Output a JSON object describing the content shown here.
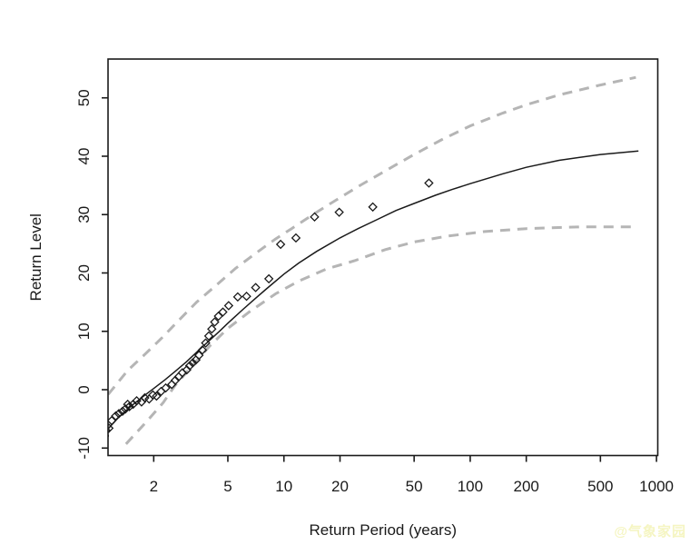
{
  "watermark": {
    "text": "@气象家园",
    "color": "#f5f5c2"
  },
  "chart_data": {
    "type": "scatter",
    "title": "",
    "xlabel": "Return Period (years)",
    "ylabel": "Return Level",
    "x_scale": "log10",
    "grid": "off",
    "legend": "none",
    "xlim": [
      1.137,
      1016
    ],
    "ylim": [
      -11.28,
      56.65
    ],
    "x_ticks": [
      2,
      5,
      10,
      20,
      50,
      100,
      200,
      500,
      1000
    ],
    "x_tick_labels": [
      "2",
      "5",
      "10",
      "20",
      "50",
      "100",
      "200",
      "500",
      "1000"
    ],
    "y_ticks": [
      -10,
      0,
      10,
      20,
      30,
      40,
      50
    ],
    "y_tick_labels": [
      "-10",
      "0",
      "10",
      "20",
      "30",
      "40",
      "50"
    ],
    "colors": {
      "line": "#1a1a1a",
      "points": "#1a1a1a",
      "confidence": "#b5b5b5"
    },
    "series": [
      {
        "name": "empirical-return-levels",
        "kind": "scatter",
        "marker": "open-diamond",
        "points": [
          [
            1.11,
            -7.0
          ],
          [
            1.15,
            -6.6
          ],
          [
            1.19,
            -5.3
          ],
          [
            1.25,
            -4.5
          ],
          [
            1.3,
            -4.1
          ],
          [
            1.36,
            -3.7
          ],
          [
            1.41,
            -3.3
          ],
          [
            1.45,
            -2.5
          ],
          [
            1.48,
            -2.9
          ],
          [
            1.55,
            -2.5
          ],
          [
            1.62,
            -1.9
          ],
          [
            1.72,
            -2.1
          ],
          [
            1.79,
            -1.4
          ],
          [
            1.89,
            -1.6
          ],
          [
            1.98,
            -0.9
          ],
          [
            2.07,
            -1.1
          ],
          [
            2.19,
            -0.3
          ],
          [
            2.32,
            0.3
          ],
          [
            2.5,
            0.9
          ],
          [
            2.61,
            1.6
          ],
          [
            2.72,
            2.2
          ],
          [
            2.85,
            2.9
          ],
          [
            3.01,
            3.4
          ],
          [
            3.12,
            4.1
          ],
          [
            3.24,
            4.6
          ],
          [
            3.37,
            5.1
          ],
          [
            3.5,
            5.9
          ],
          [
            3.65,
            6.8
          ],
          [
            3.8,
            8.0
          ],
          [
            3.95,
            9.2
          ],
          [
            4.1,
            10.4
          ],
          [
            4.25,
            11.6
          ],
          [
            4.45,
            12.6
          ],
          [
            4.7,
            13.3
          ],
          [
            5.05,
            14.4
          ],
          [
            5.65,
            15.9
          ],
          [
            6.3,
            16.0
          ],
          [
            7.05,
            17.5
          ],
          [
            8.3,
            19.0
          ],
          [
            9.6,
            24.9
          ],
          [
            11.6,
            26.0
          ],
          [
            14.6,
            29.6
          ],
          [
            19.8,
            30.4
          ],
          [
            30.0,
            31.3
          ],
          [
            60.0,
            35.4
          ]
        ]
      },
      {
        "name": "fitted-return-level",
        "kind": "line",
        "style": "solid",
        "points": [
          [
            1.1,
            -7.2
          ],
          [
            1.3,
            -4.7
          ],
          [
            1.5,
            -2.9
          ],
          [
            1.75,
            -1.2
          ],
          [
            2.0,
            0.2
          ],
          [
            2.3,
            1.7
          ],
          [
            2.6,
            3.1
          ],
          [
            3.0,
            4.8
          ],
          [
            3.5,
            6.8
          ],
          [
            4.0,
            8.5
          ],
          [
            4.5,
            10.0
          ],
          [
            5.0,
            11.4
          ],
          [
            6.0,
            13.7
          ],
          [
            7.0,
            15.6
          ],
          [
            8.0,
            17.2
          ],
          [
            10,
            19.8
          ],
          [
            12,
            21.7
          ],
          [
            15,
            23.7
          ],
          [
            20,
            26.0
          ],
          [
            25,
            27.6
          ],
          [
            30,
            28.8
          ],
          [
            40,
            30.7
          ],
          [
            50,
            31.9
          ],
          [
            65,
            33.3
          ],
          [
            80,
            34.3
          ],
          [
            100,
            35.3
          ],
          [
            150,
            37.0
          ],
          [
            200,
            38.1
          ],
          [
            300,
            39.3
          ],
          [
            500,
            40.3
          ],
          [
            800,
            40.9
          ]
        ]
      },
      {
        "name": "upper-confidence-bound",
        "kind": "line",
        "style": "dashed",
        "points": [
          [
            1.14,
            -0.8
          ],
          [
            1.45,
            3.3
          ],
          [
            1.8,
            6.1
          ],
          [
            2.2,
            8.8
          ],
          [
            2.75,
            12.0
          ],
          [
            3.4,
            15.0
          ],
          [
            4.3,
            17.8
          ],
          [
            5.5,
            20.8
          ],
          [
            7.0,
            23.3
          ],
          [
            9.0,
            25.8
          ],
          [
            11,
            27.6
          ],
          [
            14,
            29.8
          ],
          [
            18,
            32.0
          ],
          [
            25,
            34.8
          ],
          [
            35,
            37.5
          ],
          [
            50,
            40.3
          ],
          [
            70,
            42.8
          ],
          [
            100,
            45.2
          ],
          [
            150,
            47.4
          ],
          [
            200,
            48.8
          ],
          [
            300,
            50.5
          ],
          [
            500,
            52.2
          ],
          [
            775,
            53.5
          ]
        ]
      },
      {
        "name": "lower-confidence-bound",
        "kind": "line",
        "style": "dashed",
        "points": [
          [
            1.42,
            -9.3
          ],
          [
            1.85,
            -5.3
          ],
          [
            2.25,
            -2.2
          ],
          [
            2.6,
            0.7
          ],
          [
            3.2,
            4.0
          ],
          [
            4.0,
            7.5
          ],
          [
            5.0,
            10.5
          ],
          [
            6.5,
            13.3
          ],
          [
            9.0,
            16.4
          ],
          [
            12,
            18.6
          ],
          [
            17,
            20.7
          ],
          [
            24,
            22.1
          ],
          [
            35,
            24.0
          ],
          [
            50,
            25.3
          ],
          [
            75,
            26.3
          ],
          [
            120,
            27.1
          ],
          [
            200,
            27.6
          ],
          [
            400,
            27.9
          ],
          [
            775,
            27.9
          ]
        ]
      }
    ],
    "stray_dot": [
      1.13,
      -7.9
    ]
  }
}
